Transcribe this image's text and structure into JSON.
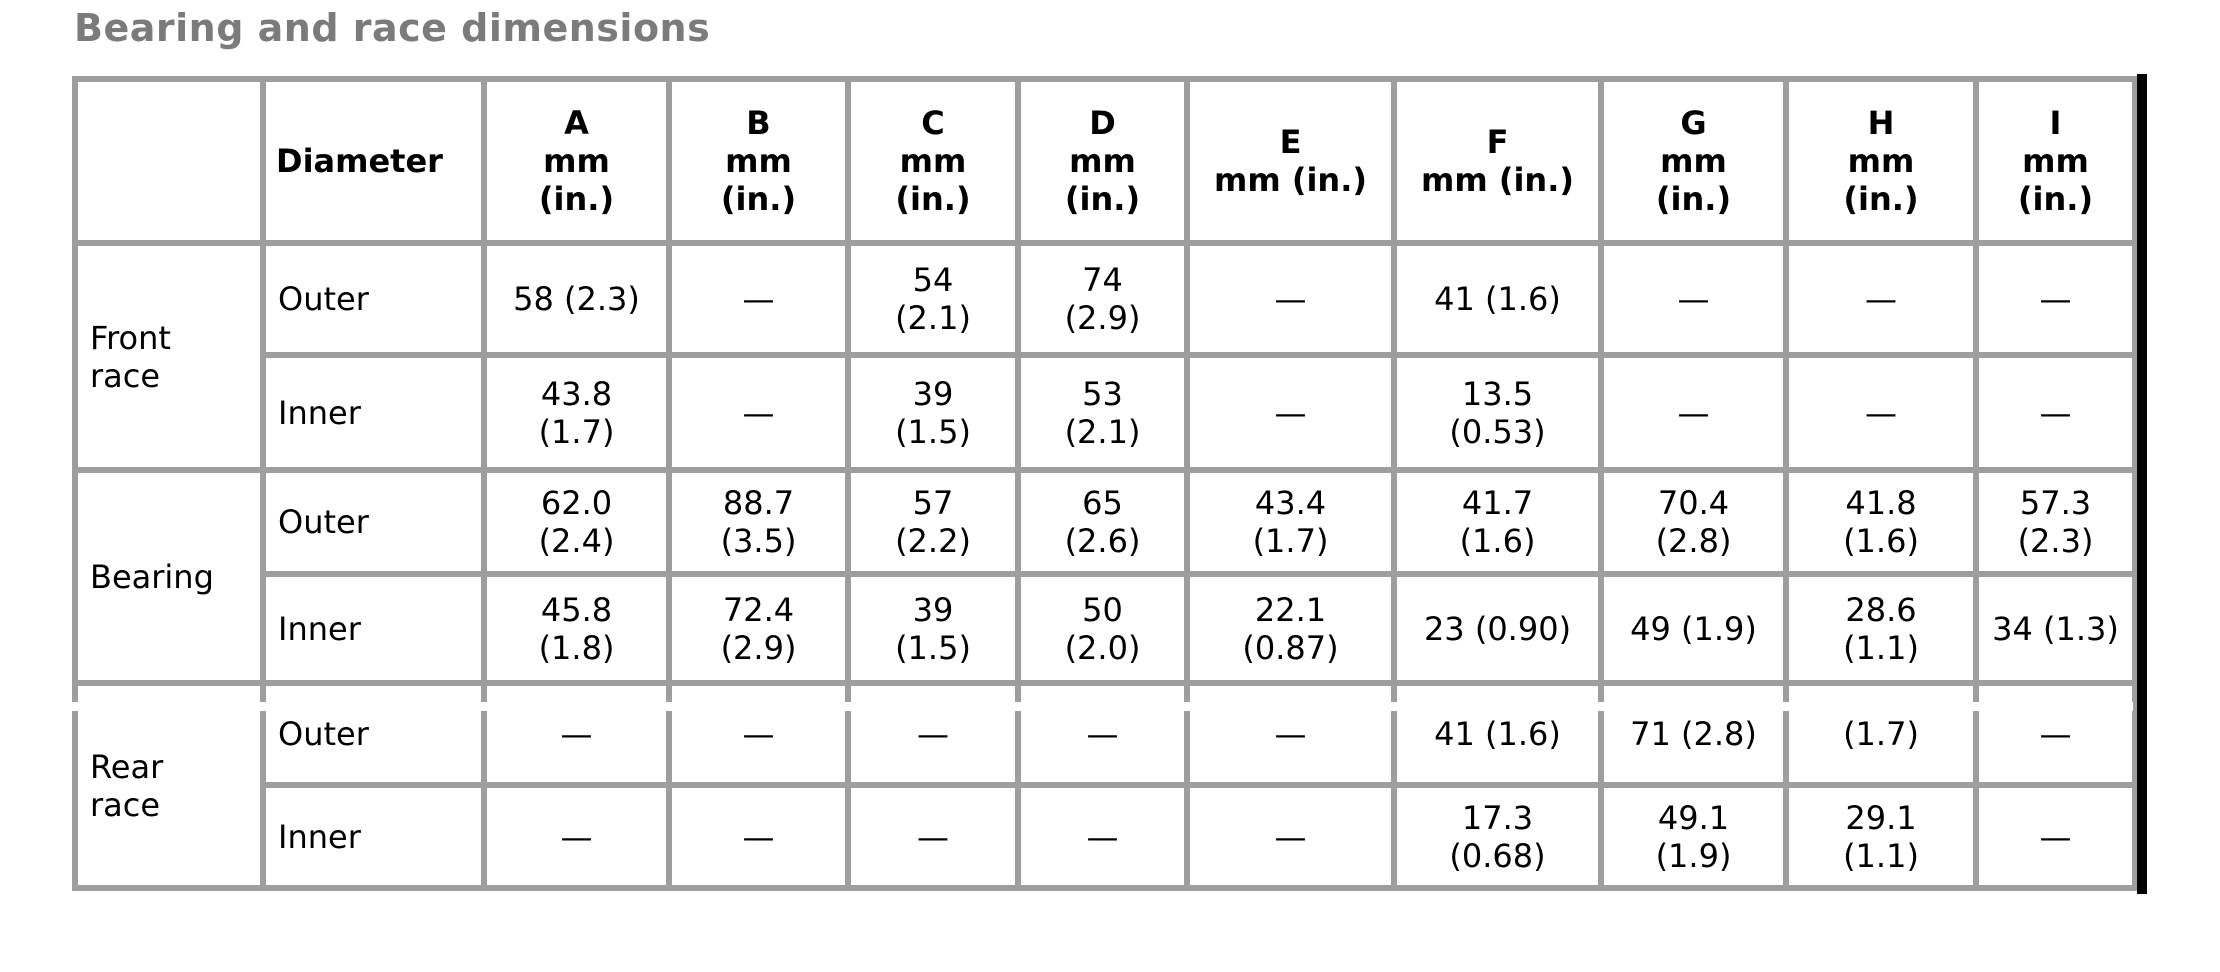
{
  "page": {
    "title": "Bearing and race dimensions"
  },
  "colors": {
    "border": "#9e9e9e",
    "title_text": "#7b7b7b",
    "body_text": "#000000",
    "change_bar": "#000000",
    "background": "#ffffff"
  },
  "table": {
    "corner_label": "",
    "diameter_header": "Diameter",
    "column_headers": [
      "A\nmm\n(in.)",
      "B\nmm\n(in.)",
      "C\nmm\n(in.)",
      "D\nmm\n(in.)",
      "E\nmm (in.)",
      "F\nmm (in.)",
      "G\nmm\n(in.)",
      "H\nmm\n(in.)",
      "I\nmm\n(in.)"
    ],
    "sections": [
      {
        "label": "Front\nrace",
        "rows": [
          {
            "diameter": "Outer",
            "values": [
              "58 (2.3)",
              "—",
              "54\n(2.1)",
              "74\n(2.9)",
              "—",
              "41 (1.6)",
              "—",
              "—",
              "—"
            ]
          },
          {
            "diameter": "Inner",
            "values": [
              "43.8\n(1.7)",
              "—",
              "39\n(1.5)",
              "53\n(2.1)",
              "—",
              "13.5\n(0.53)",
              "—",
              "—",
              "—"
            ]
          }
        ]
      },
      {
        "label": "Bearing",
        "rows": [
          {
            "diameter": "Outer",
            "values": [
              "62.0\n(2.4)",
              "88.7\n(3.5)",
              "57\n(2.2)",
              "65\n(2.6)",
              "43.4\n(1.7)",
              "41.7\n(1.6)",
              "70.4\n(2.8)",
              "41.8\n(1.6)",
              "57.3\n(2.3)"
            ]
          },
          {
            "diameter": "Inner",
            "values": [
              "45.8\n(1.8)",
              "72.4\n(2.9)",
              "39\n(1.5)",
              "50\n(2.0)",
              "22.1\n(0.87)",
              "23 (0.90)",
              "49 (1.9)",
              "28.6\n(1.1)",
              "34 (1.3)"
            ]
          }
        ]
      },
      {
        "label": "Rear\nrace",
        "rows": [
          {
            "diameter": "Outer",
            "values": [
              "—",
              "—",
              "—",
              "—",
              "—",
              "41 (1.6)",
              "71 (2.8)",
              "(1.7)",
              "—"
            ]
          },
          {
            "diameter": "Inner",
            "values": [
              "—",
              "—",
              "—",
              "—",
              "—",
              "17.3\n(0.68)",
              "49.1\n(1.9)",
              "29.1\n(1.1)",
              "—"
            ]
          }
        ]
      }
    ]
  },
  "chart_data": {
    "type": "table",
    "title": "Bearing and race dimensions",
    "columns": [
      "",
      "Diameter",
      "A mm (in.)",
      "B mm (in.)",
      "C mm (in.)",
      "D mm (in.)",
      "E mm (in.)",
      "F mm (in.)",
      "G mm (in.)",
      "H mm (in.)",
      "I mm (in.)"
    ],
    "rows": [
      [
        "Front race",
        "Outer",
        "58 (2.3)",
        "—",
        "54 (2.1)",
        "74 (2.9)",
        "—",
        "41 (1.6)",
        "—",
        "—",
        "—"
      ],
      [
        "Front race",
        "Inner",
        "43.8 (1.7)",
        "—",
        "39 (1.5)",
        "53 (2.1)",
        "—",
        "13.5 (0.53)",
        "—",
        "—",
        "—"
      ],
      [
        "Bearing",
        "Outer",
        "62.0 (2.4)",
        "88.7 (3.5)",
        "57 (2.2)",
        "65 (2.6)",
        "43.4 (1.7)",
        "41.7 (1.6)",
        "70.4 (2.8)",
        "41.8 (1.6)",
        "57.3 (2.3)"
      ],
      [
        "Bearing",
        "Inner",
        "45.8 (1.8)",
        "72.4 (2.9)",
        "39 (1.5)",
        "50 (2.0)",
        "22.1 (0.87)",
        "23 (0.90)",
        "49 (1.9)",
        "28.6 (1.1)",
        "34 (1.3)"
      ],
      [
        "Rear race",
        "Outer",
        "—",
        "—",
        "—",
        "—",
        "—",
        "41 (1.6)",
        "71 (2.8)",
        "(1.7)",
        "—"
      ],
      [
        "Rear race",
        "Inner",
        "—",
        "—",
        "—",
        "—",
        "—",
        "17.3 (0.68)",
        "49.1 (1.9)",
        "29.1 (1.1)",
        "—"
      ]
    ]
  }
}
